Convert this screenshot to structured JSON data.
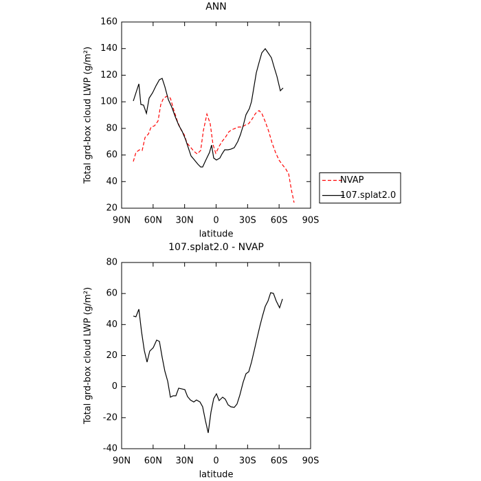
{
  "chart_data": [
    {
      "type": "line",
      "title": "ANN",
      "x_label": "latitude",
      "y_label": "Total grd-box cloud LWP (g/m²)",
      "xlim": [
        90,
        -90
      ],
      "ylim": [
        20,
        160
      ],
      "xticks": [
        {
          "value": 90,
          "label": "90N"
        },
        {
          "value": 60,
          "label": "60N"
        },
        {
          "value": 30,
          "label": "30N"
        },
        0,
        {
          "value": -30,
          "label": "30S"
        },
        {
          "value": -60,
          "label": "60S"
        },
        {
          "value": -90,
          "label": "90S"
        }
      ],
      "yticks": [
        20,
        40,
        60,
        80,
        100,
        120,
        140,
        160
      ],
      "legend": "right",
      "series": [
        {
          "name": "NVAP",
          "color": "#ff0000",
          "dashed": true,
          "x": [
            78.9,
            76.4,
            73,
            70.4,
            67.7,
            64.5,
            61.9,
            58.6,
            55.3,
            52.7,
            50.1,
            46.8,
            43.5,
            40.3,
            37,
            33.7,
            30.4,
            27.8,
            24.5,
            21.3,
            18,
            14.7,
            12.1,
            8.8,
            5.6,
            3,
            0.3,
            -2.9,
            -5.6,
            -8.8,
            -12.1,
            -14.7,
            -18,
            -21.3,
            -24.5,
            -27.8,
            -31.1,
            -34.4,
            -37.6,
            -40.9,
            -43.5,
            -46.8,
            -50.1,
            -53.3,
            -56.6,
            -59.9,
            -63.2,
            -66.4,
            -69.1,
            -71.7,
            -74.3
          ],
          "values": [
            55.1,
            61.9,
            63.9,
            63.4,
            73.2,
            75.8,
            81,
            82,
            85.6,
            98,
            102.7,
            104.2,
            102.7,
            93.9,
            85.6,
            79.4,
            75.3,
            69.1,
            66,
            62.9,
            60.8,
            63.4,
            78.4,
            90.8,
            83.6,
            68.1,
            61.3,
            66.5,
            70.1,
            73.2,
            77.4,
            78.9,
            80,
            81,
            81,
            82.5,
            83.6,
            87.2,
            91.3,
            93.4,
            91.3,
            85.1,
            77.9,
            69.1,
            61.9,
            56.2,
            52.6,
            49.5,
            45.8,
            34,
            24.2
          ]
        },
        {
          "name": "107.splat2.0",
          "color": "#000000",
          "dashed": false,
          "x": [
            78.9,
            73.6,
            71.7,
            69.1,
            66.4,
            63.8,
            60.5,
            57.3,
            54,
            51.4,
            48.8,
            45.5,
            42.2,
            38.9,
            35.7,
            32.4,
            29.1,
            26.5,
            23.9,
            20.6,
            17.4,
            14.7,
            12.8,
            9.5,
            6.3,
            4.3,
            2.3,
            -0.3,
            -3.6,
            -5.6,
            -8.2,
            -11.4,
            -14.1,
            -17.3,
            -20.6,
            -23.2,
            -25.8,
            -28.5,
            -31.7,
            -33.7,
            -35.7,
            -38.3,
            -40.9,
            -43.5,
            -46.8,
            -50.1,
            -52.7,
            -55.3,
            -57.9,
            -61.2,
            -63.8
          ],
          "values": [
            100.6,
            113.5,
            98,
            97.5,
            91.3,
            102.7,
            106.8,
            112,
            116.6,
            117.6,
            111.4,
            101.6,
            96,
            88.7,
            82.5,
            77.9,
            71.7,
            65.5,
            59.3,
            56.2,
            53.1,
            51,
            51,
            56.7,
            61.9,
            67.5,
            57.7,
            56.2,
            57.7,
            60.8,
            63.9,
            63.9,
            64.4,
            65.5,
            70.1,
            75.3,
            82,
            90.3,
            94.9,
            100.1,
            109.4,
            121.8,
            129.5,
            136.8,
            139.9,
            136.2,
            133.1,
            125.9,
            119.2,
            108.3,
            110.4
          ]
        }
      ]
    },
    {
      "type": "line",
      "title": "107.splat2.0 - NVAP",
      "x_label": "latitude",
      "y_label": "Total grd-box cloud LWP (g/m²)",
      "xlim": [
        90,
        -90
      ],
      "ylim": [
        -40,
        80
      ],
      "xticks": [
        {
          "value": 90,
          "label": "90N"
        },
        {
          "value": 60,
          "label": "60N"
        },
        {
          "value": 30,
          "label": "30N"
        },
        0,
        {
          "value": -30,
          "label": "30S"
        },
        {
          "value": -60,
          "label": "60S"
        },
        {
          "value": -90,
          "label": "90S"
        }
      ],
      "yticks": [
        -40,
        -20,
        0,
        20,
        40,
        60,
        80
      ],
      "series": [
        {
          "color": "#000000",
          "dashed": false,
          "x": [
            78.9,
            76.4,
            73.6,
            71,
            68.4,
            65.8,
            63.2,
            59.9,
            56.6,
            54,
            51.4,
            48.8,
            46.1,
            43.5,
            40.9,
            38.3,
            35.7,
            32.4,
            29.8,
            27.2,
            24.5,
            21.3,
            18.7,
            15.4,
            12.8,
            10.2,
            7.5,
            4.9,
            2.3,
            -0.3,
            -2.9,
            -6.2,
            -8.8,
            -11.4,
            -14.1,
            -17.3,
            -19.9,
            -22.6,
            -25.8,
            -28.5,
            -31.1,
            -33.7,
            -36.3,
            -39,
            -41.6,
            -44.2,
            -46.8,
            -49.4,
            -52,
            -54.6,
            -57.3,
            -60.5,
            -63.2
          ],
          "values": [
            45.5,
            45,
            49.9,
            35.3,
            23.3,
            15.8,
            22.9,
            25.1,
            30,
            29.1,
            18.9,
            10,
            3.4,
            -6.8,
            -5.9,
            -5.9,
            -1,
            -1.5,
            -1.9,
            -6.4,
            -8.6,
            -9.9,
            -8.6,
            -9.9,
            -13,
            -21.8,
            -29.8,
            -16.5,
            -7.7,
            -4.6,
            -9,
            -6.8,
            -8.1,
            -11.7,
            -13,
            -13.4,
            -11.2,
            -5.5,
            2.9,
            8.3,
            9.6,
            15.8,
            23.3,
            31.3,
            38.8,
            45.5,
            51.7,
            55.2,
            60.5,
            60.1,
            55.2,
            50.8,
            56.5
          ]
        }
      ]
    }
  ]
}
